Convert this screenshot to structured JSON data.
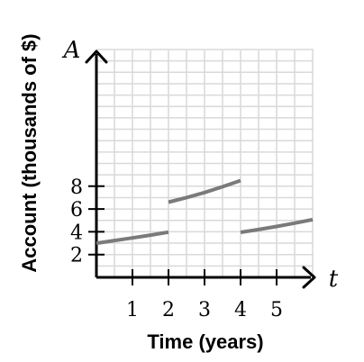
{
  "chart_data": {
    "type": "line",
    "x_axis_symbol": "t",
    "y_axis_symbol": "A",
    "xlabel": "Time (years)",
    "ylabel": "Account (thousands of $)",
    "xlim": [
      0,
      6
    ],
    "ylim": [
      0,
      10
    ],
    "x_ticks": [
      1,
      2,
      3,
      4,
      5
    ],
    "y_ticks": [
      2,
      4,
      6,
      8
    ],
    "grid": true,
    "legend": "none",
    "colors": {
      "grid": "#d9d9d9",
      "axis": "#000000",
      "series": "#7a7a7a"
    },
    "series": [
      {
        "segments": [
          {
            "x": [
              0,
              0.5,
              1,
              1.5,
              2
            ],
            "y": [
              3.0,
              3.23,
              3.46,
              3.71,
              3.97
            ]
          },
          {
            "x": [
              2,
              2.5,
              3,
              3.5,
              4
            ],
            "y": [
              6.6,
              7.0,
              7.45,
              7.95,
              8.5
            ]
          },
          {
            "x": [
              4,
              4.5,
              5,
              5.5,
              6
            ],
            "y": [
              3.95,
              4.2,
              4.47,
              4.76,
              5.07
            ]
          }
        ]
      }
    ]
  }
}
